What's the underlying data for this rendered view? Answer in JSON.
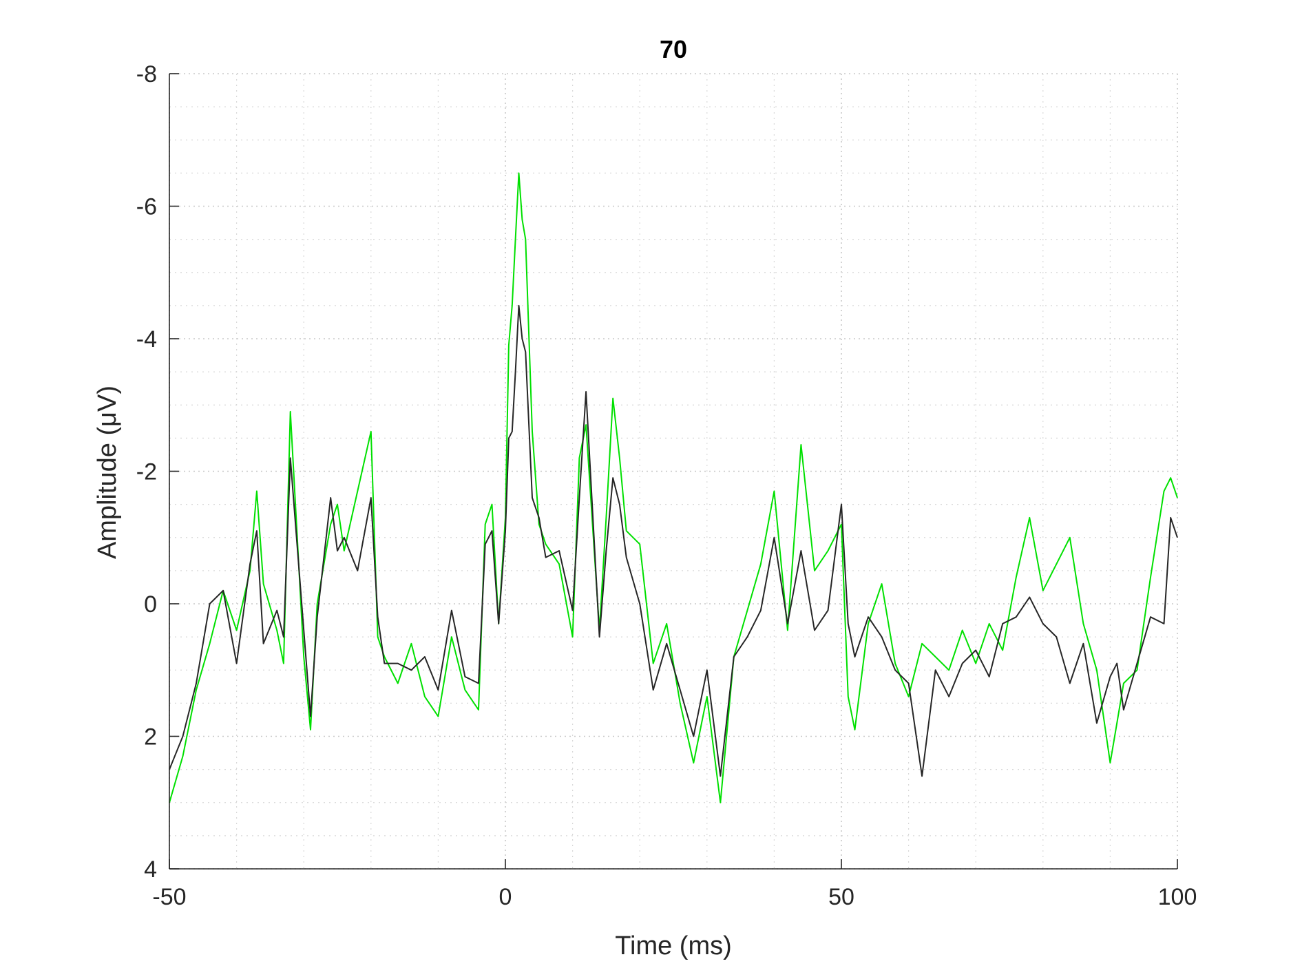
{
  "chart_data": {
    "type": "line",
    "title": "70",
    "xlabel": "Time (ms)",
    "ylabel": "Amplitude (μV)",
    "xlim": [
      -50,
      100
    ],
    "ylim": [
      -8,
      4
    ],
    "y_reversed": true,
    "grid": true,
    "minor_grid": true,
    "x_ticks": [
      -50,
      0,
      50,
      100
    ],
    "y_ticks": [
      -8,
      -6,
      -4,
      -2,
      0,
      2,
      4
    ],
    "x_tick_labels": [
      "-50",
      "0",
      "50",
      "100"
    ],
    "y_tick_labels": [
      "-8",
      "-6",
      "-4",
      "-2",
      "0",
      "2",
      "4"
    ],
    "series": [
      {
        "color": "#00e000",
        "x": [
          -50,
          -48,
          -46,
          -44,
          -42,
          -40,
          -38,
          -37,
          -36,
          -34,
          -33,
          -32,
          -30,
          -29,
          -28,
          -26,
          -25,
          -24,
          -22,
          -20,
          -19,
          -18,
          -16,
          -14,
          -12,
          -10,
          -8,
          -6,
          -4,
          -3,
          -2,
          -1,
          0,
          0.5,
          1,
          1.5,
          2,
          2.5,
          3,
          4,
          5,
          6,
          8,
          10,
          11,
          12,
          14,
          15,
          16,
          17,
          18,
          20,
          22,
          24,
          26,
          28,
          30,
          32,
          34,
          36,
          38,
          40,
          42,
          44,
          46,
          48,
          50,
          51,
          52,
          54,
          56,
          58,
          60,
          62,
          64,
          66,
          68,
          70,
          72,
          74,
          76,
          78,
          80,
          82,
          84,
          86,
          88,
          90,
          91,
          92,
          94,
          96,
          98,
          99,
          100
        ],
        "y": [
          3.0,
          2.3,
          1.3,
          0.6,
          -0.2,
          0.4,
          -0.5,
          -1.7,
          -0.3,
          0.4,
          0.9,
          -2.9,
          0.8,
          1.9,
          0.0,
          -1.2,
          -1.5,
          -0.8,
          -1.7,
          -2.6,
          0.5,
          0.8,
          1.2,
          0.6,
          1.4,
          1.7,
          0.5,
          1.3,
          1.6,
          -1.2,
          -1.5,
          0.3,
          -1.3,
          -3.9,
          -4.5,
          -5.5,
          -6.5,
          -5.8,
          -5.5,
          -2.6,
          -1.2,
          -0.9,
          -0.6,
          0.5,
          -2.2,
          -2.7,
          0.4,
          -1.3,
          -3.1,
          -2.2,
          -1.1,
          -0.9,
          0.9,
          0.3,
          1.5,
          2.4,
          1.4,
          3.0,
          0.8,
          0.1,
          -0.6,
          -1.7,
          0.4,
          -2.4,
          -0.5,
          -0.8,
          -1.2,
          1.4,
          1.9,
          0.3,
          -0.3,
          0.9,
          1.4,
          0.6,
          0.8,
          1.0,
          0.4,
          0.9,
          0.3,
          0.7,
          -0.4,
          -1.3,
          -0.2,
          -0.6,
          -1.0,
          0.3,
          1.0,
          2.4,
          1.8,
          1.2,
          1.0,
          -0.4,
          -1.7,
          -1.9,
          -1.6
        ]
      },
      {
        "color": "#262626",
        "x": [
          -50,
          -48,
          -46,
          -44,
          -42,
          -40,
          -38,
          -37,
          -36,
          -34,
          -33,
          -32,
          -30,
          -29,
          -28,
          -26,
          -25,
          -24,
          -22,
          -20,
          -19,
          -18,
          -16,
          -14,
          -12,
          -10,
          -8,
          -6,
          -4,
          -3,
          -2,
          -1,
          0,
          0.5,
          1,
          1.5,
          2,
          2.5,
          3,
          4,
          5,
          6,
          8,
          10,
          11,
          12,
          14,
          15,
          16,
          17,
          18,
          20,
          22,
          24,
          26,
          28,
          30,
          32,
          34,
          36,
          38,
          40,
          42,
          44,
          46,
          48,
          50,
          51,
          52,
          54,
          56,
          58,
          60,
          62,
          64,
          66,
          68,
          70,
          72,
          74,
          76,
          78,
          80,
          82,
          84,
          86,
          88,
          90,
          91,
          92,
          94,
          96,
          98,
          99,
          100
        ],
        "y": [
          2.5,
          2.0,
          1.2,
          0.0,
          -0.2,
          0.9,
          -0.6,
          -1.1,
          0.6,
          0.1,
          0.5,
          -2.2,
          0.4,
          1.7,
          0.2,
          -1.6,
          -0.8,
          -1.0,
          -0.5,
          -1.6,
          0.2,
          0.9,
          0.9,
          1.0,
          0.8,
          1.3,
          0.1,
          1.1,
          1.2,
          -0.9,
          -1.1,
          0.3,
          -1.1,
          -2.5,
          -2.6,
          -3.5,
          -4.5,
          -4.0,
          -3.8,
          -1.6,
          -1.3,
          -0.7,
          -0.8,
          0.1,
          -1.6,
          -3.2,
          0.5,
          -0.8,
          -1.9,
          -1.5,
          -0.7,
          0.0,
          1.3,
          0.6,
          1.3,
          2.0,
          1.0,
          2.6,
          0.8,
          0.5,
          0.1,
          -1.0,
          0.3,
          -0.8,
          0.4,
          0.1,
          -1.5,
          0.3,
          0.8,
          0.2,
          0.5,
          1.0,
          1.2,
          2.6,
          1.0,
          1.4,
          0.9,
          0.7,
          1.1,
          0.3,
          0.2,
          -0.1,
          0.3,
          0.5,
          1.2,
          0.6,
          1.8,
          1.1,
          0.9,
          1.6,
          0.9,
          0.2,
          0.3,
          -1.3,
          -1.0
        ]
      }
    ]
  }
}
